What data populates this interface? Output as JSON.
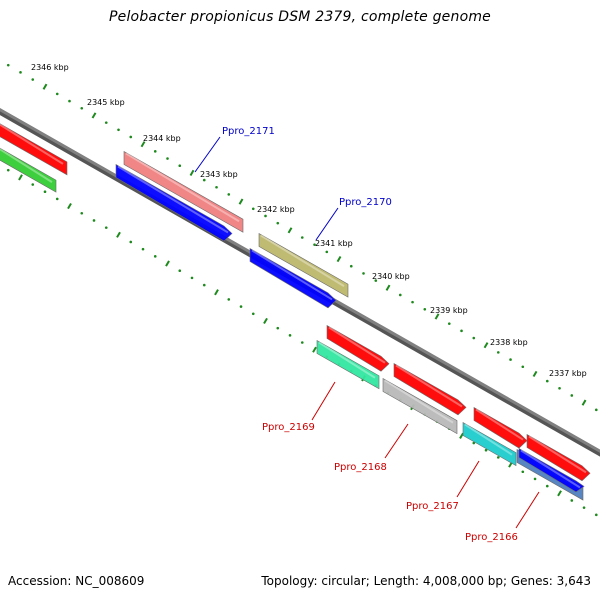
{
  "title": "Pelobacter propionicus DSM 2379, complete genome",
  "footer": {
    "accession": "Accession: NC_008609",
    "info": "Topology: circular; Length: 4,008,000 bp; Genes: 3,643"
  },
  "colors": {
    "backbone": "#808080",
    "tick": "#1e8a1e",
    "label_forward": "#0000cc",
    "label_reverse": "#cc0000"
  },
  "ticks": [
    "2346 kbp",
    "2345 kbp",
    "2344 kbp",
    "2343 kbp",
    "2342 kbp",
    "2341 kbp",
    "2340 kbp",
    "2339 kbp",
    "2338 kbp",
    "2337 kbp"
  ],
  "gene_labels": [
    {
      "text": "Ppro_2171",
      "strand": "forward"
    },
    {
      "text": "Ppro_2170",
      "strand": "forward"
    },
    {
      "text": "Ppro_2169",
      "strand": "reverse"
    },
    {
      "text": "Ppro_2168",
      "strand": "reverse"
    },
    {
      "text": "Ppro_2167",
      "strand": "reverse"
    },
    {
      "text": "Ppro_2166",
      "strand": "reverse"
    }
  ],
  "features": [
    {
      "name": "feature-red-left-1",
      "color": "#ff0000"
    },
    {
      "name": "feature-green-left",
      "color": "#33cc33"
    },
    {
      "name": "feature-pink",
      "color": "#f08080"
    },
    {
      "name": "feature-blue-1",
      "color": "#0000ff"
    },
    {
      "name": "feature-olive",
      "color": "#bdb76b"
    },
    {
      "name": "feature-blue-2",
      "color": "#0000ff"
    },
    {
      "name": "feature-red-2",
      "color": "#ff0000"
    },
    {
      "name": "feature-mint",
      "color": "#33e6a0"
    },
    {
      "name": "feature-red-3",
      "color": "#ff0000"
    },
    {
      "name": "feature-gray",
      "color": "#b8b8b8"
    },
    {
      "name": "feature-red-4",
      "color": "#ff0000"
    },
    {
      "name": "feature-cyan",
      "color": "#1ecccc"
    },
    {
      "name": "feature-red-5",
      "color": "#ff0000"
    },
    {
      "name": "feature-steelblue",
      "color": "#4f7fbf"
    },
    {
      "name": "feature-blue-3",
      "color": "#0000ff"
    }
  ]
}
